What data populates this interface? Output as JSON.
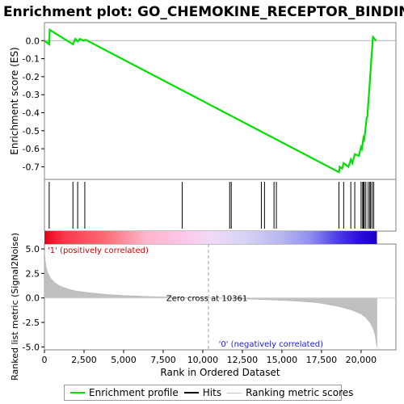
{
  "chart_data": {
    "type": "line",
    "title": "Enrichment plot: GO_CHEMOKINE_RECEPTOR_BINDING",
    "top_panel": {
      "ylabel": "Enrichment score (ES)",
      "ylim": [
        -0.77,
        0.1
      ],
      "yticks": [
        0.0,
        -0.1,
        -0.2,
        -0.3,
        -0.4,
        -0.5,
        -0.6,
        -0.7
      ],
      "yticklabels": [
        "0.0",
        "-0.1",
        "-0.2",
        "-0.3",
        "-0.4",
        "-0.5",
        "-0.6",
        "-0.7"
      ],
      "series": [
        {
          "color": "#00e000",
          "x": [
            0,
            300,
            330,
            1800,
            1950,
            2100,
            2250,
            2450,
            2600,
            18600,
            18650,
            18800,
            18900,
            19200,
            19350,
            19450,
            19600,
            19850,
            20000,
            20050,
            20150,
            20200,
            20350,
            20400,
            20450,
            20520,
            20580,
            20650,
            20750,
            20950
          ],
          "y": [
            0.0,
            -0.02,
            0.06,
            -0.02,
            0.01,
            -0.005,
            0.01,
            0.0,
            0.005,
            -0.73,
            -0.7,
            -0.71,
            -0.68,
            -0.7,
            -0.66,
            -0.68,
            -0.63,
            -0.64,
            -0.59,
            -0.6,
            -0.54,
            -0.55,
            -0.43,
            -0.42,
            -0.35,
            -0.27,
            -0.19,
            -0.1,
            0.02,
            0.0
          ]
        }
      ]
    },
    "hits_panel": {
      "positions": [
        300,
        1800,
        2100,
        2550,
        8700,
        11700,
        11800,
        13700,
        13900,
        14500,
        14650,
        18600,
        18900,
        19350,
        19600,
        20000,
        20100,
        20150,
        20200,
        20300,
        20450,
        20550,
        20600,
        20700,
        20800
      ]
    },
    "bottom_panel": {
      "ylabel": "Ranked list metric (Signal2Noise)",
      "xlabel": "Rank in Ordered Dataset",
      "ylim": [
        -5.3,
        5.5
      ],
      "yticks": [
        5.0,
        2.5,
        0.0,
        -2.5,
        -5.0
      ],
      "yticklabels": [
        "5.0",
        "2.5",
        "0.0",
        "-2.5",
        "-5.0"
      ],
      "xlim": [
        0,
        22200
      ],
      "xticks": [
        0,
        2500,
        5000,
        7500,
        10000,
        12500,
        15000,
        17500,
        20000
      ],
      "xticklabels": [
        "0",
        "2,500",
        "5,000",
        "7,500",
        "10,000",
        "12,500",
        "15,000",
        "17,500",
        "20,000"
      ],
      "metric_x": [
        0,
        50,
        100,
        200,
        400,
        700,
        1000,
        1500,
        2000,
        3000,
        4000,
        5000,
        6000,
        7000,
        8000,
        9000,
        10361,
        11000,
        12000,
        13000,
        14000,
        15000,
        16000,
        17000,
        17500,
        18000,
        18500,
        19000,
        19500,
        20000,
        20300,
        20600,
        20800,
        20900,
        20950,
        21000
      ],
      "metric_y": [
        4.8,
        3.8,
        3.2,
        2.6,
        2.0,
        1.5,
        1.2,
        0.9,
        0.7,
        0.5,
        0.35,
        0.25,
        0.18,
        0.12,
        0.08,
        0.04,
        0.0,
        -0.03,
        -0.07,
        -0.12,
        -0.18,
        -0.25,
        -0.33,
        -0.45,
        -0.55,
        -0.7,
        -0.85,
        -1.05,
        -1.3,
        -1.65,
        -2.0,
        -2.6,
        -3.3,
        -3.9,
        -4.5,
        -5.0
      ],
      "zero_cross_rank": 10361,
      "zero_cross_label": "Zero cross at 10361",
      "pos_label": "'1' (positively correlated)",
      "neg_label": "'0' (negatively correlated)"
    },
    "legend": [
      {
        "label": "Enrichment profile",
        "color": "#00e000"
      },
      {
        "label": "Hits",
        "color": "#000000"
      },
      {
        "label": "Ranking metric scores",
        "color": "#c0c0c0"
      }
    ]
  }
}
